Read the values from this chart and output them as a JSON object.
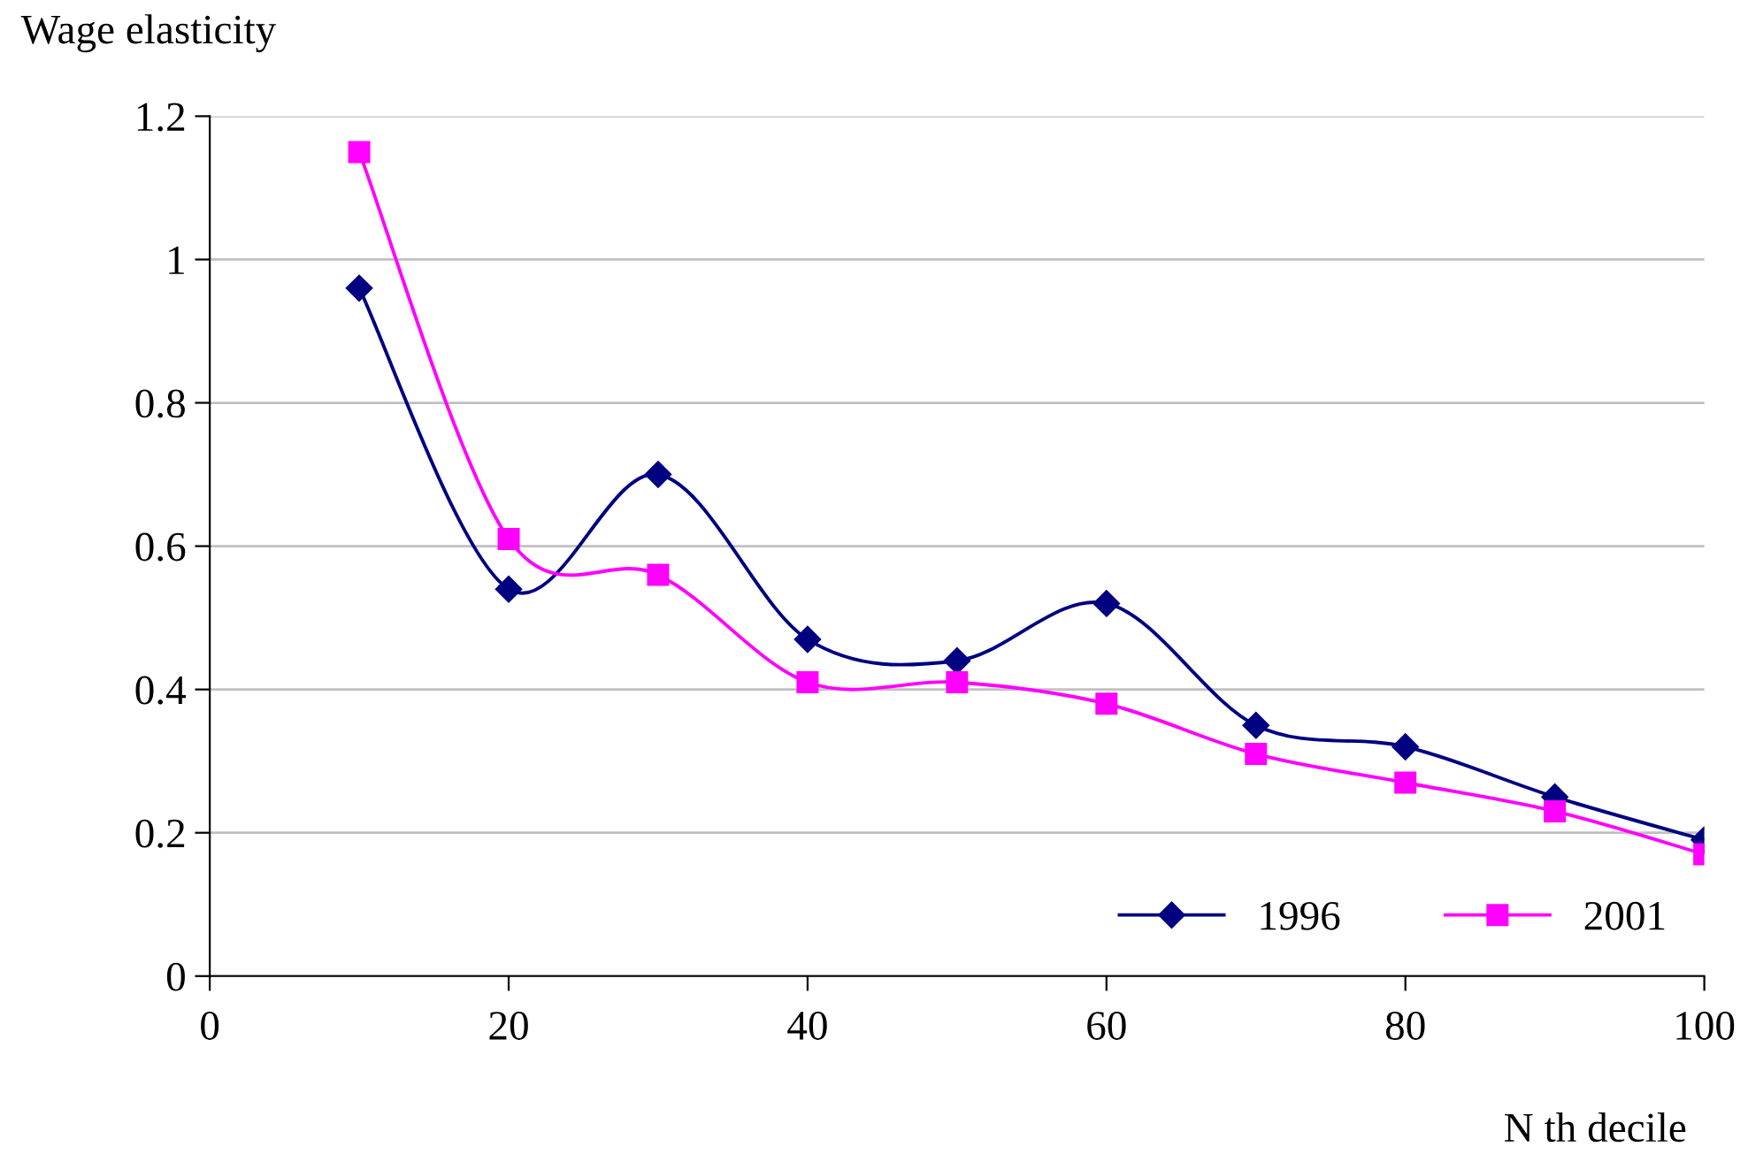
{
  "chart_data": {
    "type": "line",
    "ylabel": "Wage elasticity",
    "xlabel": "N th decile",
    "x": [
      10,
      20,
      30,
      40,
      50,
      60,
      70,
      80,
      90,
      100
    ],
    "series": [
      {
        "name": "1996",
        "color": "#000080",
        "marker": "diamond",
        "values": [
          0.96,
          0.54,
          0.7,
          0.47,
          0.44,
          0.52,
          0.35,
          0.32,
          0.25,
          0.19
        ]
      },
      {
        "name": "2001",
        "color": "#ff00ff",
        "marker": "square",
        "values": [
          1.15,
          0.61,
          0.56,
          0.41,
          0.41,
          0.38,
          0.31,
          0.27,
          0.23,
          0.17
        ]
      }
    ],
    "xlim": [
      0,
      100
    ],
    "xticks": [
      0,
      20,
      40,
      60,
      80,
      100
    ],
    "ylim": [
      0,
      1.2
    ],
    "yticks": [
      0,
      0.2,
      0.4,
      0.6,
      0.8,
      1,
      1.2
    ],
    "grid": "y",
    "legend": "bottom right",
    "line_style": "solid"
  }
}
